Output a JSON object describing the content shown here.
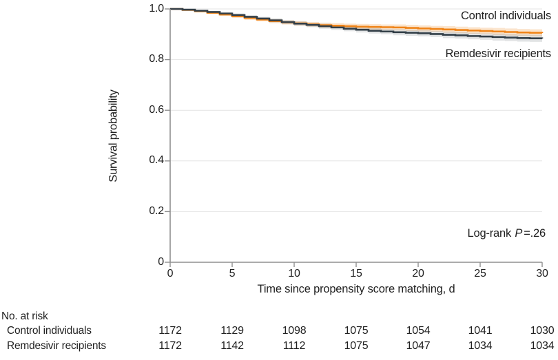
{
  "chart_data": {
    "type": "line",
    "subtype": "kaplan-meier-step",
    "title": "",
    "xlabel": "Time since propensity score matching, d",
    "ylabel": "Survival probability",
    "xlim": [
      0,
      30
    ],
    "ylim": [
      0,
      1
    ],
    "x_ticks": [
      0,
      5,
      10,
      15,
      20,
      25,
      30
    ],
    "y_ticks": [
      "1.0",
      "0.8",
      "0.6",
      "0.4",
      "0.2",
      "0"
    ],
    "gridline_values": [
      1.0,
      0.8,
      0.6,
      0.4,
      0.2
    ],
    "grid": true,
    "legend_position": "labels-at-line-ends-right",
    "annotation": {
      "prefix": "Log-rank ",
      "stat": "P",
      "rest": "=.26"
    },
    "colors": {
      "control_line": "#EF8419",
      "control_band": "rgba(239,132,25,0.22)",
      "remdesivir_line": "#333F48",
      "remdesivir_band": "rgba(109,120,126,0.20)",
      "grid": "#E4E4E4",
      "axis": "#8F8F8F",
      "text": "#212121"
    },
    "x_days": [
      0,
      1,
      2,
      3,
      4,
      5,
      6,
      7,
      8,
      9,
      10,
      11,
      12,
      13,
      14,
      15,
      16,
      17,
      18,
      19,
      20,
      21,
      22,
      23,
      24,
      25,
      26,
      27,
      28,
      29,
      30
    ],
    "series": [
      {
        "name": "Control individuals",
        "values": [
          1.0,
          0.996,
          0.991,
          0.985,
          0.978,
          0.971,
          0.964,
          0.958,
          0.952,
          0.947,
          0.943,
          0.939,
          0.936,
          0.934,
          0.932,
          0.93,
          0.929,
          0.928,
          0.927,
          0.925,
          0.923,
          0.921,
          0.919,
          0.917,
          0.915,
          0.913,
          0.911,
          0.909,
          0.907,
          0.906,
          0.905
        ],
        "ci_halfwidth": [
          0.002,
          0.003,
          0.004,
          0.005,
          0.006,
          0.006,
          0.007,
          0.007,
          0.008,
          0.008,
          0.009,
          0.009,
          0.01,
          0.01,
          0.01,
          0.011,
          0.011,
          0.011,
          0.012,
          0.012,
          0.012,
          0.012,
          0.013,
          0.013,
          0.013,
          0.013,
          0.014,
          0.014,
          0.014,
          0.014,
          0.014
        ]
      },
      {
        "name": "Remdesivir recipients",
        "values": [
          1.0,
          0.997,
          0.993,
          0.988,
          0.982,
          0.976,
          0.969,
          0.962,
          0.955,
          0.948,
          0.942,
          0.937,
          0.932,
          0.927,
          0.922,
          0.918,
          0.914,
          0.911,
          0.908,
          0.906,
          0.904,
          0.901,
          0.898,
          0.896,
          0.893,
          0.891,
          0.889,
          0.887,
          0.885,
          0.884,
          0.883
        ],
        "ci_halfwidth": [
          0.002,
          0.003,
          0.004,
          0.005,
          0.006,
          0.006,
          0.007,
          0.007,
          0.008,
          0.008,
          0.009,
          0.009,
          0.01,
          0.01,
          0.01,
          0.011,
          0.011,
          0.011,
          0.012,
          0.012,
          0.012,
          0.012,
          0.013,
          0.013,
          0.013,
          0.013,
          0.014,
          0.014,
          0.014,
          0.014,
          0.014
        ]
      }
    ],
    "risk_table": {
      "title": "No. at risk",
      "time_points": [
        0,
        5,
        10,
        15,
        20,
        25,
        30
      ],
      "rows": [
        {
          "label": "Control individuals",
          "counts": [
            1172,
            1129,
            1098,
            1075,
            1054,
            1041,
            1030
          ]
        },
        {
          "label": "Remdesivir recipients",
          "counts": [
            1172,
            1142,
            1112,
            1075,
            1047,
            1034,
            1034
          ]
        }
      ]
    }
  }
}
